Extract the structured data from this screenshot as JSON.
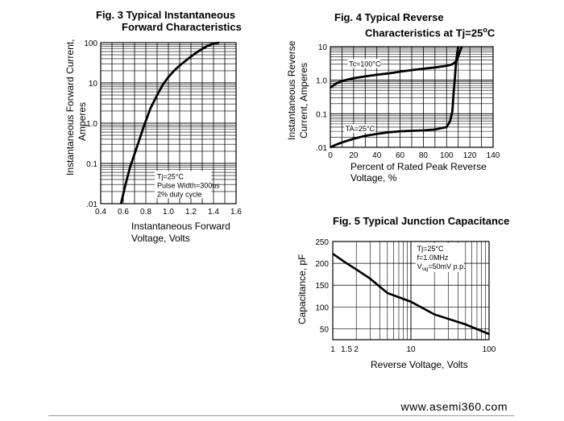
{
  "colors": {
    "ink": "#000000",
    "grid": "#000000",
    "rule": "#999999"
  },
  "footer": {
    "site": "www.asemi360.com"
  },
  "chart_data": [
    {
      "type": "line",
      "title_line1": "Fig. 3 Typical Instantaneous",
      "title_line2": "Forward Characteristics",
      "xlabel_line1": "Instantaneous Forward",
      "xlabel_line2": "Voltage, Volts",
      "ylabel_line1": "Instantaneous Forward Current,",
      "ylabel_line2": "Amperes",
      "xlim": [
        0.4,
        1.6
      ],
      "ylim": [
        0.01,
        100
      ],
      "y_log": true,
      "x_ticks": [
        "0.4",
        "0.6",
        "0.8",
        "1.0",
        "1.2",
        "1.4",
        "1.6"
      ],
      "y_ticks": [
        "100",
        "10",
        "1.0",
        "0.1",
        ".01"
      ],
      "grid": true,
      "annotations": [
        "Tj=25°C",
        "Pulse Width=300us",
        "2% duty cycle"
      ],
      "series": [
        {
          "x": [
            0.58,
            0.62,
            0.66,
            0.72,
            0.78,
            0.84,
            0.9,
            0.95,
            1.0,
            1.05,
            1.1,
            1.15,
            1.2,
            1.25,
            1.3,
            1.35,
            1.4,
            1.45
          ],
          "y": [
            0.01,
            0.03,
            0.08,
            0.25,
            0.8,
            2.3,
            5,
            9,
            14,
            20,
            27,
            35,
            45,
            57,
            70,
            84,
            95,
            100
          ]
        }
      ]
    },
    {
      "type": "line",
      "title_line1": "Fig. 4 Typical Reverse",
      "title_line2": "Characteristics at Tj=25",
      "title_deg": "o",
      "title_unit": "C",
      "xlabel_line1": "Percent of Rated Peak Reverse",
      "xlabel_line2": "Voltage, %",
      "ylabel_line1": "Instantaneous Reverse",
      "ylabel_line2": "Current, Amperes",
      "xlim": [
        0,
        140
      ],
      "ylim": [
        0.01,
        10
      ],
      "y_log": true,
      "x_ticks": [
        "0",
        "20",
        "40",
        "60",
        "80",
        "100",
        "120",
        "140"
      ],
      "y_ticks": [
        "10",
        "1.0",
        "0.1",
        ".01"
      ],
      "grid": true,
      "series": [
        {
          "name": "Tc=100°C",
          "x": [
            0,
            5,
            10,
            20,
            30,
            40,
            50,
            60,
            70,
            80,
            90,
            100,
            105,
            108,
            110,
            111,
            112,
            112.5,
            113
          ],
          "y": [
            0.6,
            0.8,
            0.95,
            1.15,
            1.3,
            1.45,
            1.6,
            1.8,
            2.0,
            2.2,
            2.4,
            2.7,
            3.0,
            3.6,
            5.0,
            6.5,
            8.0,
            9.0,
            10
          ]
        },
        {
          "name": "TA=25°C",
          "x": [
            0,
            5,
            10,
            20,
            30,
            40,
            50,
            60,
            70,
            80,
            90,
            100,
            103,
            105,
            106,
            107,
            108,
            109,
            110
          ],
          "y": [
            0.01,
            0.012,
            0.014,
            0.018,
            0.022,
            0.025,
            0.028,
            0.03,
            0.031,
            0.032,
            0.034,
            0.04,
            0.06,
            0.12,
            0.4,
            1.0,
            3.0,
            6.0,
            10
          ]
        }
      ]
    },
    {
      "type": "line",
      "title": "Fig. 5 Typical Junction Capacitance",
      "xlabel": "Reverse Voltage, Volts",
      "ylabel": "Capacitance, pF",
      "xlim": [
        1,
        100
      ],
      "x_log": true,
      "ylim": [
        25,
        250
      ],
      "x_ticks": [
        "1",
        "1.5",
        "2",
        "10",
        "100"
      ],
      "y_ticks": [
        "250",
        "200",
        "150",
        "100",
        "50"
      ],
      "grid": true,
      "annotations": [
        "Tj=25°C",
        "f=1.0MHz",
        "V",
        "sig",
        "=50mV p.p."
      ],
      "series": [
        {
          "x": [
            1,
            1.5,
            2,
            3,
            5,
            10,
            20,
            50,
            100
          ],
          "y": [
            222,
            200,
            186,
            165,
            132,
            112,
            83,
            60,
            38
          ]
        }
      ]
    }
  ]
}
